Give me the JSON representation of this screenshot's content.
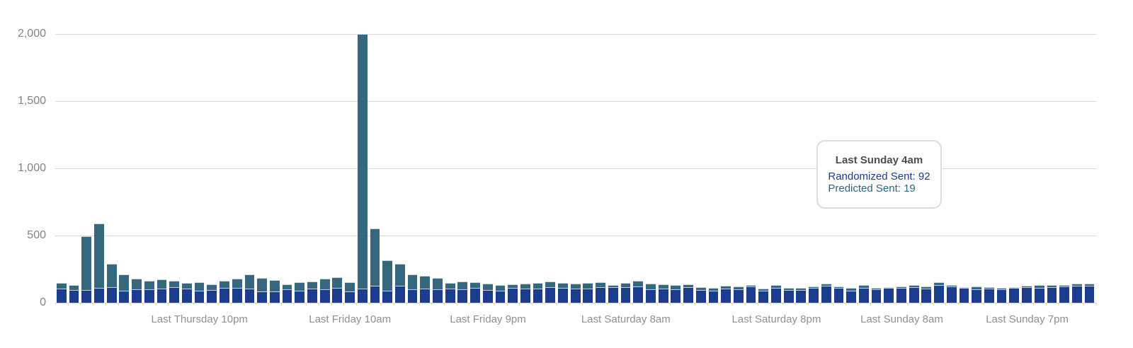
{
  "chart_data": {
    "type": "bar",
    "stacked": true,
    "title": "",
    "xlabel": "",
    "ylabel": "",
    "ylim": [
      0,
      2000
    ],
    "grid": "horizontal",
    "legend": "none",
    "y_ticks": [
      {
        "value": 0,
        "label": "0"
      },
      {
        "value": 500,
        "label": "500"
      },
      {
        "value": 1000,
        "label": "1,000"
      },
      {
        "value": 1500,
        "label": "1,500"
      },
      {
        "value": 2000,
        "label": "2,000"
      }
    ],
    "x_tick_labels": [
      {
        "index": 11,
        "label": "Last Thursday 10pm"
      },
      {
        "index": 23,
        "label": "Last Friday 10am"
      },
      {
        "index": 34,
        "label": "Last Friday 9pm"
      },
      {
        "index": 45,
        "label": "Last Saturday 8am"
      },
      {
        "index": 57,
        "label": "Last Saturday 8pm"
      },
      {
        "index": 67,
        "label": "Last Sunday 8am"
      },
      {
        "index": 77,
        "label": "Last Sunday 7pm"
      }
    ],
    "hovered_index": 63,
    "series": [
      {
        "name": "Randomized Sent",
        "color": "#1c3c8e",
        "values": [
          105,
          95,
          95,
          110,
          116,
          89,
          100,
          100,
          105,
          116,
          105,
          89,
          95,
          110,
          110,
          105,
          84,
          84,
          100,
          89,
          105,
          100,
          110,
          84,
          105,
          126,
          89,
          126,
          100,
          105,
          100,
          105,
          100,
          110,
          95,
          89,
          110,
          105,
          105,
          116,
          110,
          105,
          105,
          116,
          116,
          116,
          121,
          100,
          105,
          100,
          116,
          95,
          89,
          105,
          100,
          121,
          89,
          110,
          95,
          95,
          110,
          126,
          110,
          92,
          110,
          100,
          110,
          110,
          116,
          105,
          131,
          121,
          110,
          100,
          105,
          100,
          110,
          116,
          110,
          116,
          121,
          126,
          126
        ]
      },
      {
        "name": "Predicted Sent",
        "color": "#35687f",
        "values": [
          42,
          36,
          400,
          480,
          174,
          121,
          79,
          63,
          69,
          47,
          42,
          63,
          42,
          53,
          69,
          105,
          100,
          84,
          37,
          63,
          53,
          79,
          80,
          68,
          1895,
          426,
          227,
          164,
          110,
          95,
          84,
          42,
          58,
          42,
          47,
          42,
          27,
          37,
          42,
          42,
          37,
          37,
          42,
          36,
          15,
          31,
          42,
          42,
          32,
          31,
          21,
          21,
          21,
          21,
          21,
          10,
          16,
          21,
          15,
          15,
          11,
          16,
          11,
          19,
          21,
          10,
          6,
          11,
          15,
          16,
          21,
          10,
          6,
          21,
          11,
          10,
          6,
          10,
          21,
          15,
          10,
          16,
          16
        ]
      }
    ]
  },
  "tooltip": {
    "title": "Last Sunday 4am",
    "separator": ": ",
    "lines": [
      {
        "label": "Randomized Sent",
        "value": "92",
        "color": "#1c3c8e"
      },
      {
        "label": "Predicted Sent",
        "value": "19",
        "color": "#2d647f"
      }
    ]
  }
}
